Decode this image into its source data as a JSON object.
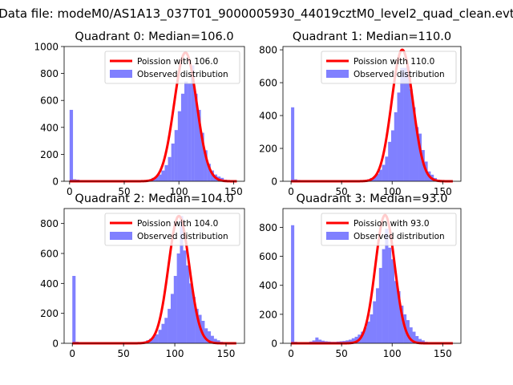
{
  "figure": {
    "suptitle": "Data file: modeM0/AS1A13_037T01_9000005930_44019cztM0_level2_quad_clean.evt"
  },
  "colors": {
    "poisson": "#ff0000",
    "observed": "#8080ff"
  },
  "chart_data": [
    {
      "type": "bar+line",
      "title": "Quadrant 0: Median=106.0",
      "xlim": [
        -5,
        160
      ],
      "ylim": [
        0,
        1000
      ],
      "xticks": [
        0,
        50,
        100,
        150
      ],
      "yticks": [
        0,
        200,
        400,
        600,
        800,
        1000
      ],
      "legend_position": "top-right",
      "series": [
        {
          "name": "Poission with 106.0",
          "type": "line",
          "lambda": 106.0,
          "peak": 955,
          "sigma": 10.3,
          "x_range": [
            0,
            153
          ]
        },
        {
          "name": "Observed distribution",
          "type": "bar",
          "bin_width": 3.1,
          "bins": [
            [
              0,
              530
            ],
            [
              3,
              15
            ],
            [
              6,
              12
            ],
            [
              66,
              3
            ],
            [
              69,
              6
            ],
            [
              72,
              12
            ],
            [
              75,
              25
            ],
            [
              78,
              35
            ],
            [
              81,
              50
            ],
            [
              84,
              80
            ],
            [
              87,
              120
            ],
            [
              90,
              180
            ],
            [
              93,
              280
            ],
            [
              96,
              380
            ],
            [
              99,
              520
            ],
            [
              102,
              650
            ],
            [
              105,
              740
            ],
            [
              108,
              725
            ],
            [
              111,
              860
            ],
            [
              114,
              650
            ],
            [
              117,
              530
            ],
            [
              120,
              360
            ],
            [
              123,
              230
            ],
            [
              126,
              130
            ],
            [
              129,
              80
            ],
            [
              132,
              50
            ],
            [
              135,
              35
            ],
            [
              138,
              25
            ],
            [
              141,
              12
            ],
            [
              144,
              8
            ],
            [
              147,
              5
            ]
          ]
        }
      ]
    },
    {
      "type": "bar+line",
      "title": "Quadrant 1: Median=110.0",
      "xlim": [
        -8,
        168
      ],
      "ylim": [
        0,
        820
      ],
      "xticks": [
        0,
        50,
        100,
        150
      ],
      "yticks": [
        0,
        200,
        400,
        600,
        800
      ],
      "legend_position": "top-right",
      "series": [
        {
          "name": "Poission with 110.0",
          "type": "line",
          "lambda": 110.0,
          "peak": 800,
          "sigma": 10.5,
          "x_range": [
            0,
            160
          ]
        },
        {
          "name": "Observed distribution",
          "type": "bar",
          "bin_width": 3.2,
          "bins": [
            [
              0,
              450
            ],
            [
              3,
              12
            ],
            [
              6,
              8
            ],
            [
              72,
              5
            ],
            [
              75,
              12
            ],
            [
              78,
              20
            ],
            [
              81,
              30
            ],
            [
              84,
              45
            ],
            [
              87,
              70
            ],
            [
              90,
              100
            ],
            [
              93,
              150
            ],
            [
              96,
              240
            ],
            [
              99,
              310
            ],
            [
              102,
              420
            ],
            [
              105,
              540
            ],
            [
              108,
              690
            ],
            [
              111,
              690
            ],
            [
              114,
              700
            ],
            [
              117,
              560
            ],
            [
              120,
              450
            ],
            [
              123,
              330
            ],
            [
              126,
              290
            ],
            [
              129,
              190
            ],
            [
              132,
              120
            ],
            [
              135,
              60
            ],
            [
              138,
              40
            ],
            [
              141,
              20
            ],
            [
              144,
              10
            ],
            [
              147,
              5
            ]
          ]
        }
      ]
    },
    {
      "type": "bar+line",
      "title": "Quadrant 2: Median=104.0",
      "xlim": [
        -8,
        168
      ],
      "ylim": [
        0,
        900
      ],
      "xticks": [
        0,
        50,
        100,
        150
      ],
      "yticks": [
        0,
        200,
        400,
        600,
        800
      ],
      "legend_position": "top-right",
      "series": [
        {
          "name": "Poission with 104.0",
          "type": "line",
          "lambda": 104.0,
          "peak": 850,
          "sigma": 10.2,
          "x_range": [
            0,
            160
          ]
        },
        {
          "name": "Observed distribution",
          "type": "bar",
          "bin_width": 3.2,
          "bins": [
            [
              0,
              450
            ],
            [
              3,
              10
            ],
            [
              6,
              6
            ],
            [
              66,
              6
            ],
            [
              69,
              12
            ],
            [
              72,
              20
            ],
            [
              75,
              30
            ],
            [
              78,
              45
            ],
            [
              81,
              60
            ],
            [
              84,
              90
            ],
            [
              87,
              130
            ],
            [
              90,
              170
            ],
            [
              93,
              230
            ],
            [
              96,
              330
            ],
            [
              99,
              450
            ],
            [
              102,
              600
            ],
            [
              105,
              850
            ],
            [
              108,
              620
            ],
            [
              111,
              520
            ],
            [
              114,
              400
            ],
            [
              117,
              310
            ],
            [
              120,
              230
            ],
            [
              123,
              190
            ],
            [
              126,
              150
            ],
            [
              129,
              100
            ],
            [
              132,
              80
            ],
            [
              135,
              50
            ],
            [
              138,
              30
            ],
            [
              141,
              20
            ],
            [
              144,
              10
            ],
            [
              147,
              5
            ]
          ]
        }
      ]
    },
    {
      "type": "bar+line",
      "title": "Quadrant 3: Median=93.0",
      "xlim": [
        -8,
        168
      ],
      "ylim": [
        0,
        930
      ],
      "xticks": [
        0,
        50,
        100,
        150
      ],
      "yticks": [
        0,
        200,
        400,
        600,
        800
      ],
      "legend_position": "top-right",
      "series": [
        {
          "name": "Poission with 93.0",
          "type": "line",
          "lambda": 93.0,
          "peak": 885,
          "sigma": 9.6,
          "x_range": [
            0,
            160
          ]
        },
        {
          "name": "Observed distribution",
          "type": "bar",
          "bin_width": 3.2,
          "bins": [
            [
              0,
              815
            ],
            [
              3,
              10
            ],
            [
              6,
              6
            ],
            [
              15,
              8
            ],
            [
              18,
              12
            ],
            [
              21,
              20
            ],
            [
              24,
              40
            ],
            [
              27,
              25
            ],
            [
              30,
              18
            ],
            [
              33,
              14
            ],
            [
              36,
              12
            ],
            [
              39,
              10
            ],
            [
              42,
              10
            ],
            [
              45,
              12
            ],
            [
              48,
              14
            ],
            [
              51,
              16
            ],
            [
              54,
              20
            ],
            [
              57,
              25
            ],
            [
              60,
              35
            ],
            [
              63,
              45
            ],
            [
              66,
              60
            ],
            [
              69,
              80
            ],
            [
              72,
              110
            ],
            [
              75,
              150
            ],
            [
              78,
              200
            ],
            [
              81,
              290
            ],
            [
              84,
              380
            ],
            [
              87,
              520
            ],
            [
              90,
              650
            ],
            [
              93,
              790
            ],
            [
              96,
              660
            ],
            [
              99,
              580
            ],
            [
              102,
              430
            ],
            [
              105,
              360
            ],
            [
              108,
              260
            ],
            [
              111,
              200
            ],
            [
              114,
              160
            ],
            [
              117,
              110
            ],
            [
              120,
              80
            ],
            [
              123,
              50
            ],
            [
              126,
              30
            ],
            [
              129,
              20
            ],
            [
              132,
              10
            ]
          ]
        }
      ]
    }
  ]
}
